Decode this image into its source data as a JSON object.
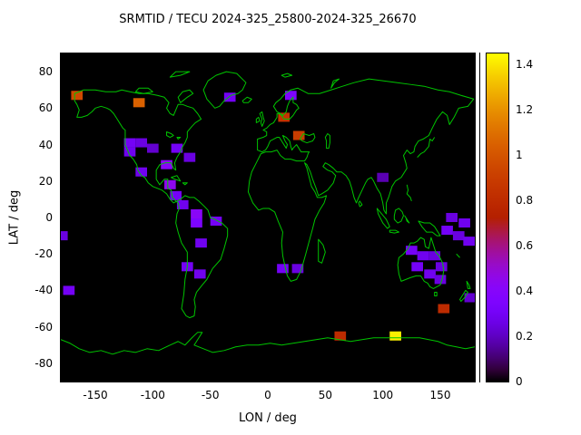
{
  "chart_data": {
    "type": "heatmap",
    "title": "SRMTID / TECU 2024-325_25800-2024-325_26670",
    "xlabel": "LON / deg",
    "ylabel": "LAT / deg",
    "xlim": [
      -180,
      180
    ],
    "ylim": [
      -90,
      90
    ],
    "x_ticks": [
      -150,
      -100,
      -50,
      0,
      50,
      100,
      150
    ],
    "y_ticks": [
      80,
      60,
      40,
      20,
      0,
      -20,
      -40,
      -60,
      -80
    ],
    "background_color": "#000000",
    "coastline_color": "#00c400",
    "grid": false,
    "colorbar": {
      "range": [
        0,
        1.45
      ],
      "ticks": [
        0,
        0.2,
        0.4,
        0.6,
        0.8,
        1,
        1.2,
        1.4
      ],
      "palette": "gnuplot pm3d black-purple-violet-red-orange-yellow",
      "position": "right"
    },
    "cell_size_deg": {
      "lon": 10,
      "lat": 5
    },
    "cells": [
      {
        "lon": -166,
        "lat": 67,
        "value": 0.95
      },
      {
        "lon": -112,
        "lat": 63,
        "value": 1.05
      },
      {
        "lon": -33,
        "lat": 66,
        "value": 0.3
      },
      {
        "lon": 20,
        "lat": 67,
        "value": 0.35
      },
      {
        "lon": 14,
        "lat": 55,
        "value": 0.85
      },
      {
        "lon": 27,
        "lat": 45,
        "value": 0.9
      },
      {
        "lon": -120,
        "lat": 41,
        "value": 0.3
      },
      {
        "lon": -110,
        "lat": 41,
        "value": 0.25
      },
      {
        "lon": -120,
        "lat": 36,
        "value": 0.28
      },
      {
        "lon": -100,
        "lat": 38,
        "value": 0.22
      },
      {
        "lon": -79,
        "lat": 38,
        "value": 0.3
      },
      {
        "lon": -68,
        "lat": 33,
        "value": 0.25
      },
      {
        "lon": -88,
        "lat": 29,
        "value": 0.42
      },
      {
        "lon": -110,
        "lat": 25,
        "value": 0.28
      },
      {
        "lon": -85,
        "lat": 18,
        "value": 0.45
      },
      {
        "lon": -80,
        "lat": 12,
        "value": 0.3
      },
      {
        "lon": -74,
        "lat": 7,
        "value": 0.28
      },
      {
        "lon": -62,
        "lat": 2,
        "value": 0.42
      },
      {
        "lon": -62,
        "lat": -3,
        "value": 0.35
      },
      {
        "lon": -45,
        "lat": -2,
        "value": 0.3
      },
      {
        "lon": -58,
        "lat": -14,
        "value": 0.28
      },
      {
        "lon": -70,
        "lat": -27,
        "value": 0.3
      },
      {
        "lon": -59,
        "lat": -31,
        "value": 0.28
      },
      {
        "lon": 13,
        "lat": -28,
        "value": 0.3
      },
      {
        "lon": 26,
        "lat": -28,
        "value": 0.25
      },
      {
        "lon": -179,
        "lat": -10,
        "value": 0.25
      },
      {
        "lon": -173,
        "lat": -40,
        "value": 0.3
      },
      {
        "lon": 100,
        "lat": 22,
        "value": 0.18
      },
      {
        "lon": 160,
        "lat": 0,
        "value": 0.25
      },
      {
        "lon": 171,
        "lat": -3,
        "value": 0.28
      },
      {
        "lon": 156,
        "lat": -7,
        "value": 0.3
      },
      {
        "lon": 166,
        "lat": -10,
        "value": 0.25
      },
      {
        "lon": 175,
        "lat": -13,
        "value": 0.28
      },
      {
        "lon": 125,
        "lat": -18,
        "value": 0.3
      },
      {
        "lon": 135,
        "lat": -21,
        "value": 0.28
      },
      {
        "lon": 145,
        "lat": -21,
        "value": 0.25
      },
      {
        "lon": 130,
        "lat": -27,
        "value": 0.3
      },
      {
        "lon": 141,
        "lat": -31,
        "value": 0.28
      },
      {
        "lon": 151,
        "lat": -27,
        "value": 0.25
      },
      {
        "lon": 150,
        "lat": -34,
        "value": 0.25
      },
      {
        "lon": 176,
        "lat": -44,
        "value": 0.22
      },
      {
        "lon": 153,
        "lat": -50,
        "value": 0.8
      },
      {
        "lon": 63,
        "lat": -65,
        "value": 0.8
      },
      {
        "lon": 111,
        "lat": -65,
        "value": 1.42
      }
    ]
  }
}
